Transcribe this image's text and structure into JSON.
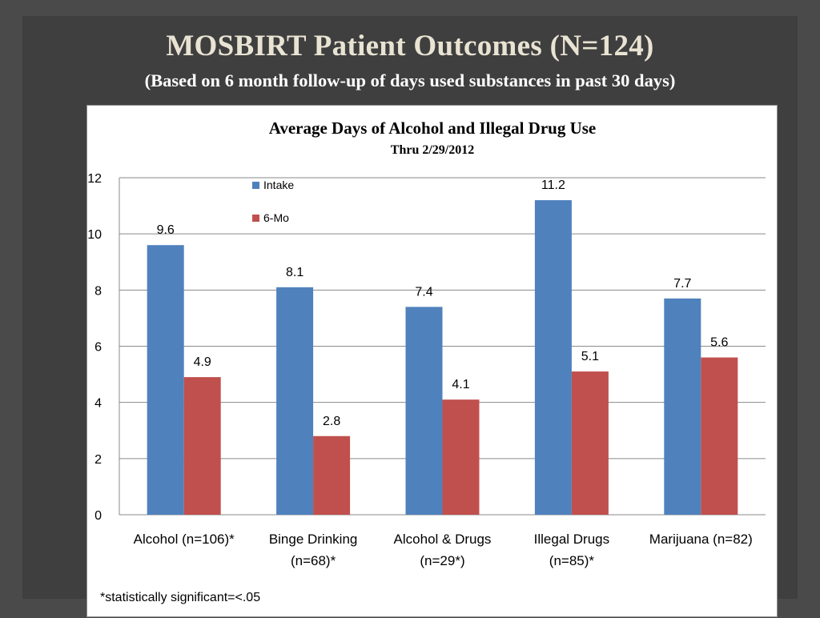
{
  "slide": {
    "title": "MOSBIRT Patient Outcomes (N=124)",
    "subtitle": "(Based on 6 month follow-up of days used substances in past 30 days)"
  },
  "chart_data": {
    "type": "bar",
    "title": "Average Days of Alcohol and Illegal Drug Use",
    "subtitle": "Thru 2/29/2012",
    "categories": [
      [
        "Alcohol (n=106)*"
      ],
      [
        "Binge Drinking",
        "(n=68)*"
      ],
      [
        "Alcohol & Drugs",
        "(n=29*)"
      ],
      [
        "Illegal Drugs",
        "(n=85)*"
      ],
      [
        "Marijuana (n=82)"
      ]
    ],
    "series": [
      {
        "name": "Intake",
        "color": "#4f81bd",
        "values": [
          9.6,
          8.1,
          7.4,
          11.2,
          7.7
        ]
      },
      {
        "name": "6-Mo",
        "color": "#c0504d",
        "values": [
          4.9,
          2.8,
          4.1,
          5.1,
          5.6
        ]
      }
    ],
    "xlabel": "",
    "ylabel": "",
    "ylim": [
      0,
      12
    ],
    "yticks": [
      0,
      2,
      4,
      6,
      8,
      10,
      12
    ],
    "grid": true,
    "legend_position": "top-left inside plot",
    "footnote": "*statistically significant=<.05"
  },
  "colors": {
    "background": "#4a4a4a",
    "title": "#e9e3d3",
    "subtitle": "#ffffff",
    "gridline": "#8a8a8a"
  }
}
